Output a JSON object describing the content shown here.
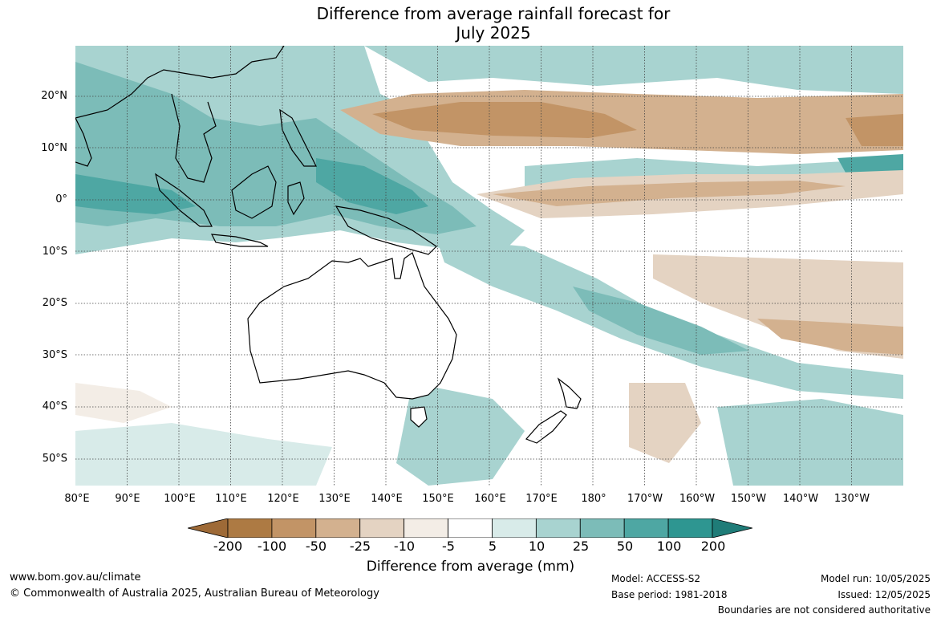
{
  "title": {
    "line1": "Difference from average rainfall forecast for",
    "line2": "July 2025"
  },
  "lat_labels": [
    "20°N",
    "10°N",
    "0°",
    "10°S",
    "20°S",
    "30°S",
    "40°S",
    "50°S"
  ],
  "lon_labels": [
    "80°E",
    "90°E",
    "100°E",
    "110°E",
    "120°E",
    "130°E",
    "140°E",
    "150°E",
    "160°E",
    "170°E",
    "180°",
    "170°W",
    "160°W",
    "150°W",
    "140°W",
    "130°W"
  ],
  "colorbar": {
    "ticks": [
      "-200",
      "-100",
      "-50",
      "-25",
      "-10",
      "-5",
      "5",
      "10",
      "25",
      "50",
      "100",
      "200"
    ],
    "colors": [
      "#9e6a37",
      "#ad7a43",
      "#c29466",
      "#d3b18f",
      "#e4d3c2",
      "#f3ede6",
      "#ffffff",
      "#d8ebe9",
      "#a8d3d0",
      "#7cbcb8",
      "#4ea7a3",
      "#2e9691",
      "#1f7c78"
    ],
    "title": "Difference from average (mm)"
  },
  "footer": {
    "website": "www.bom.gov.au/climate",
    "copyright": "© Commonwealth of Australia 2025, Australian Bureau of Meteorology",
    "model": "Model: ACCESS-S2",
    "base_period": "Base period: 1981-2018",
    "model_run": "Model run: 10/05/2025",
    "issued": "Issued: 12/05/2025",
    "disclaimer": "Boundaries are not considered authoritative"
  }
}
